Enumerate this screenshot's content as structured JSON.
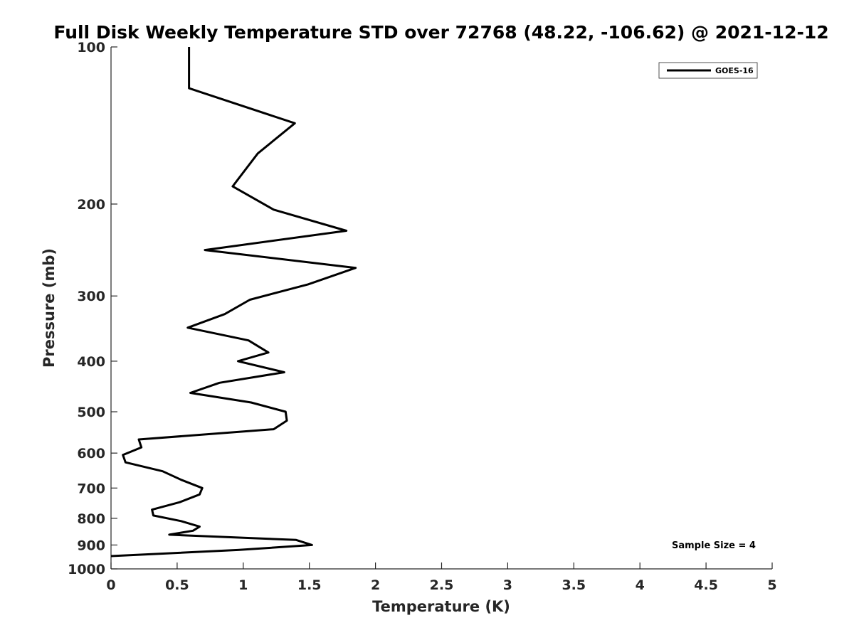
{
  "chart_data": {
    "type": "line",
    "title": "Full Disk Weekly Temperature STD over 72768 (48.22, -106.62) @ 2021-12-12",
    "xlabel": "Temperature (K)",
    "ylabel": "Pressure (mb)",
    "xlim": [
      0,
      5
    ],
    "ylim": [
      100,
      1000
    ],
    "yscale": "log",
    "y_reversed": true,
    "grid": false,
    "legend_position": "top-right",
    "x_ticks": [
      "0",
      "0.5",
      "1",
      "1.5",
      "2",
      "2.5",
      "3",
      "3.5",
      "4",
      "4.5",
      "5"
    ],
    "x_tick_values": [
      0,
      0.5,
      1,
      1.5,
      2,
      2.5,
      3,
      3.5,
      4,
      4.5,
      5
    ],
    "y_ticks": [
      "100",
      "200",
      "300",
      "400",
      "500",
      "600",
      "700",
      "800",
      "900",
      "1000"
    ],
    "y_tick_values": [
      100,
      200,
      300,
      400,
      500,
      600,
      700,
      800,
      900,
      1000
    ],
    "annotation": "Sample Size = 4",
    "series": [
      {
        "name": "GOES-16",
        "color": "#000000",
        "points": [
          [
            0.59,
            100
          ],
          [
            0.59,
            120
          ],
          [
            1.39,
            140
          ],
          [
            1.11,
            160
          ],
          [
            0.92,
            185
          ],
          [
            1.23,
            205
          ],
          [
            1.78,
            225
          ],
          [
            0.71,
            245
          ],
          [
            1.85,
            265
          ],
          [
            1.49,
            285
          ],
          [
            1.05,
            305
          ],
          [
            0.86,
            325
          ],
          [
            0.58,
            345
          ],
          [
            1.04,
            365
          ],
          [
            1.19,
            385
          ],
          [
            0.96,
            400
          ],
          [
            1.31,
            420
          ],
          [
            0.82,
            440
          ],
          [
            0.6,
            460
          ],
          [
            1.06,
            480
          ],
          [
            1.32,
            500
          ],
          [
            1.33,
            520
          ],
          [
            1.23,
            540
          ],
          [
            0.21,
            565
          ],
          [
            0.23,
            585
          ],
          [
            0.09,
            605
          ],
          [
            0.11,
            625
          ],
          [
            0.39,
            650
          ],
          [
            0.53,
            675
          ],
          [
            0.69,
            700
          ],
          [
            0.67,
            720
          ],
          [
            0.52,
            745
          ],
          [
            0.31,
            770
          ],
          [
            0.32,
            790
          ],
          [
            0.53,
            810
          ],
          [
            0.67,
            830
          ],
          [
            0.62,
            845
          ],
          [
            0.44,
            860
          ],
          [
            1.4,
            880
          ],
          [
            1.52,
            900
          ],
          [
            0.96,
            920
          ],
          [
            0.0,
            945
          ]
        ]
      }
    ]
  }
}
